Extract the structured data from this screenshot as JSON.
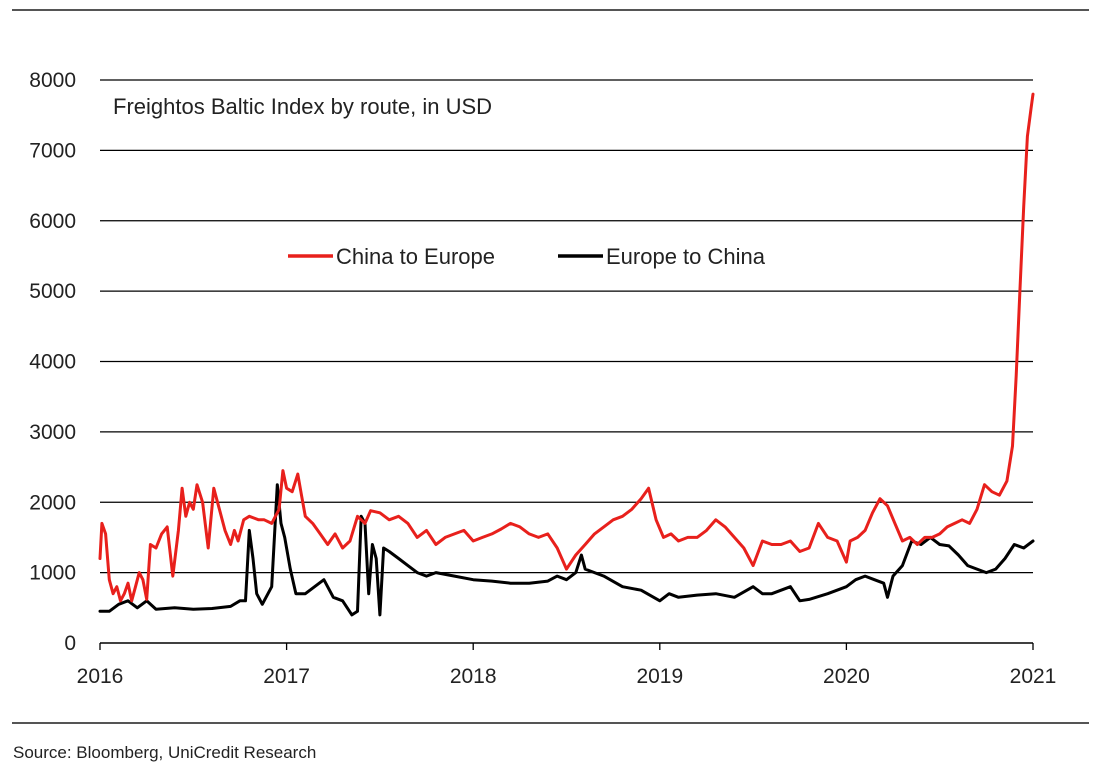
{
  "source_note": "Source: Bloomberg, UniCredit Research",
  "chart_data": {
    "type": "line",
    "title": "Freightos Baltic Index by route, in USD",
    "xlabel": "",
    "ylabel": "",
    "xlim": [
      2016.0,
      2021.0
    ],
    "ylim": [
      0,
      8000
    ],
    "y_ticks": [
      0,
      1000,
      2000,
      3000,
      4000,
      5000,
      6000,
      7000,
      8000
    ],
    "x_ticks": [
      2016,
      2017,
      2018,
      2019,
      2020,
      2021
    ],
    "grid": "horizontal",
    "legend": "center-top, inside plot",
    "colors": {
      "China to Europe": "#e8201c",
      "Europe to China": "#000000"
    },
    "series": [
      {
        "name": "China to Europe",
        "points": [
          [
            2016.0,
            1200
          ],
          [
            2016.01,
            1700
          ],
          [
            2016.03,
            1550
          ],
          [
            2016.05,
            900
          ],
          [
            2016.07,
            700
          ],
          [
            2016.09,
            800
          ],
          [
            2016.11,
            600
          ],
          [
            2016.13,
            700
          ],
          [
            2016.15,
            850
          ],
          [
            2016.17,
            600
          ],
          [
            2016.19,
            800
          ],
          [
            2016.21,
            1000
          ],
          [
            2016.23,
            900
          ],
          [
            2016.25,
            620
          ],
          [
            2016.27,
            1400
          ],
          [
            2016.3,
            1350
          ],
          [
            2016.33,
            1550
          ],
          [
            2016.36,
            1650
          ],
          [
            2016.39,
            950
          ],
          [
            2016.42,
            1600
          ],
          [
            2016.44,
            2200
          ],
          [
            2016.46,
            1800
          ],
          [
            2016.48,
            2000
          ],
          [
            2016.5,
            1900
          ],
          [
            2016.52,
            2250
          ],
          [
            2016.55,
            2000
          ],
          [
            2016.58,
            1350
          ],
          [
            2016.61,
            2200
          ],
          [
            2016.64,
            1900
          ],
          [
            2016.67,
            1600
          ],
          [
            2016.7,
            1400
          ],
          [
            2016.72,
            1600
          ],
          [
            2016.74,
            1450
          ],
          [
            2016.77,
            1750
          ],
          [
            2016.8,
            1800
          ],
          [
            2016.85,
            1750
          ],
          [
            2016.88,
            1750
          ],
          [
            2016.92,
            1700
          ],
          [
            2016.96,
            1900
          ],
          [
            2016.98,
            2450
          ],
          [
            2017.0,
            2200
          ],
          [
            2017.03,
            2150
          ],
          [
            2017.06,
            2400
          ],
          [
            2017.08,
            2100
          ],
          [
            2017.1,
            1800
          ],
          [
            2017.14,
            1700
          ],
          [
            2017.18,
            1550
          ],
          [
            2017.22,
            1400
          ],
          [
            2017.26,
            1550
          ],
          [
            2017.3,
            1350
          ],
          [
            2017.34,
            1450
          ],
          [
            2017.38,
            1800
          ],
          [
            2017.42,
            1700
          ],
          [
            2017.45,
            1880
          ],
          [
            2017.5,
            1850
          ],
          [
            2017.55,
            1750
          ],
          [
            2017.6,
            1800
          ],
          [
            2017.65,
            1700
          ],
          [
            2017.7,
            1500
          ],
          [
            2017.75,
            1600
          ],
          [
            2017.8,
            1400
          ],
          [
            2017.85,
            1500
          ],
          [
            2017.9,
            1550
          ],
          [
            2017.95,
            1600
          ],
          [
            2018.0,
            1450
          ],
          [
            2018.05,
            1500
          ],
          [
            2018.1,
            1550
          ],
          [
            2018.15,
            1620
          ],
          [
            2018.2,
            1700
          ],
          [
            2018.25,
            1650
          ],
          [
            2018.3,
            1550
          ],
          [
            2018.35,
            1500
          ],
          [
            2018.4,
            1550
          ],
          [
            2018.45,
            1350
          ],
          [
            2018.5,
            1050
          ],
          [
            2018.55,
            1250
          ],
          [
            2018.6,
            1400
          ],
          [
            2018.65,
            1550
          ],
          [
            2018.7,
            1650
          ],
          [
            2018.75,
            1750
          ],
          [
            2018.8,
            1800
          ],
          [
            2018.85,
            1900
          ],
          [
            2018.9,
            2050
          ],
          [
            2018.94,
            2200
          ],
          [
            2018.98,
            1750
          ],
          [
            2019.02,
            1500
          ],
          [
            2019.06,
            1550
          ],
          [
            2019.1,
            1450
          ],
          [
            2019.15,
            1500
          ],
          [
            2019.2,
            1500
          ],
          [
            2019.25,
            1600
          ],
          [
            2019.3,
            1750
          ],
          [
            2019.35,
            1650
          ],
          [
            2019.4,
            1500
          ],
          [
            2019.45,
            1350
          ],
          [
            2019.5,
            1100
          ],
          [
            2019.55,
            1450
          ],
          [
            2019.6,
            1400
          ],
          [
            2019.65,
            1400
          ],
          [
            2019.7,
            1450
          ],
          [
            2019.75,
            1300
          ],
          [
            2019.8,
            1350
          ],
          [
            2019.85,
            1700
          ],
          [
            2019.9,
            1500
          ],
          [
            2019.95,
            1450
          ],
          [
            2020.0,
            1150
          ],
          [
            2020.02,
            1450
          ],
          [
            2020.06,
            1500
          ],
          [
            2020.1,
            1600
          ],
          [
            2020.14,
            1850
          ],
          [
            2020.18,
            2050
          ],
          [
            2020.22,
            1950
          ],
          [
            2020.26,
            1700
          ],
          [
            2020.3,
            1450
          ],
          [
            2020.34,
            1500
          ],
          [
            2020.38,
            1400
          ],
          [
            2020.42,
            1500
          ],
          [
            2020.46,
            1500
          ],
          [
            2020.5,
            1550
          ],
          [
            2020.54,
            1650
          ],
          [
            2020.58,
            1700
          ],
          [
            2020.62,
            1750
          ],
          [
            2020.66,
            1700
          ],
          [
            2020.7,
            1900
          ],
          [
            2020.74,
            2250
          ],
          [
            2020.78,
            2150
          ],
          [
            2020.82,
            2100
          ],
          [
            2020.86,
            2300
          ],
          [
            2020.89,
            2800
          ],
          [
            2020.91,
            3800
          ],
          [
            2020.93,
            5000
          ],
          [
            2020.95,
            6200
          ],
          [
            2020.97,
            7200
          ],
          [
            2020.99,
            7600
          ],
          [
            2021.0,
            7800
          ]
        ]
      },
      {
        "name": "Europe to China",
        "points": [
          [
            2016.0,
            450
          ],
          [
            2016.05,
            450
          ],
          [
            2016.1,
            550
          ],
          [
            2016.15,
            600
          ],
          [
            2016.2,
            500
          ],
          [
            2016.25,
            600
          ],
          [
            2016.3,
            480
          ],
          [
            2016.4,
            500
          ],
          [
            2016.5,
            480
          ],
          [
            2016.6,
            490
          ],
          [
            2016.7,
            520
          ],
          [
            2016.75,
            600
          ],
          [
            2016.78,
            600
          ],
          [
            2016.8,
            1600
          ],
          [
            2016.82,
            1200
          ],
          [
            2016.84,
            700
          ],
          [
            2016.87,
            550
          ],
          [
            2016.92,
            800
          ],
          [
            2016.95,
            2250
          ],
          [
            2016.97,
            1700
          ],
          [
            2016.99,
            1500
          ],
          [
            2017.02,
            1050
          ],
          [
            2017.05,
            700
          ],
          [
            2017.1,
            700
          ],
          [
            2017.15,
            800
          ],
          [
            2017.2,
            900
          ],
          [
            2017.25,
            650
          ],
          [
            2017.3,
            600
          ],
          [
            2017.35,
            400
          ],
          [
            2017.38,
            450
          ],
          [
            2017.4,
            1800
          ],
          [
            2017.42,
            1700
          ],
          [
            2017.44,
            700
          ],
          [
            2017.46,
            1400
          ],
          [
            2017.48,
            1200
          ],
          [
            2017.5,
            400
          ],
          [
            2017.52,
            1350
          ],
          [
            2017.55,
            1300
          ],
          [
            2017.6,
            1200
          ],
          [
            2017.65,
            1100
          ],
          [
            2017.7,
            1000
          ],
          [
            2017.75,
            950
          ],
          [
            2017.8,
            1000
          ],
          [
            2017.9,
            950
          ],
          [
            2018.0,
            900
          ],
          [
            2018.1,
            880
          ],
          [
            2018.2,
            850
          ],
          [
            2018.3,
            850
          ],
          [
            2018.4,
            880
          ],
          [
            2018.45,
            950
          ],
          [
            2018.5,
            900
          ],
          [
            2018.55,
            1000
          ],
          [
            2018.58,
            1250
          ],
          [
            2018.6,
            1050
          ],
          [
            2018.7,
            950
          ],
          [
            2018.8,
            800
          ],
          [
            2018.9,
            750
          ],
          [
            2019.0,
            600
          ],
          [
            2019.05,
            700
          ],
          [
            2019.1,
            650
          ],
          [
            2019.2,
            680
          ],
          [
            2019.3,
            700
          ],
          [
            2019.4,
            650
          ],
          [
            2019.5,
            800
          ],
          [
            2019.55,
            700
          ],
          [
            2019.6,
            700
          ],
          [
            2019.7,
            800
          ],
          [
            2019.75,
            600
          ],
          [
            2019.8,
            620
          ],
          [
            2019.9,
            700
          ],
          [
            2020.0,
            800
          ],
          [
            2020.05,
            900
          ],
          [
            2020.1,
            950
          ],
          [
            2020.15,
            900
          ],
          [
            2020.2,
            850
          ],
          [
            2020.22,
            650
          ],
          [
            2020.25,
            950
          ],
          [
            2020.3,
            1100
          ],
          [
            2020.35,
            1450
          ],
          [
            2020.4,
            1400
          ],
          [
            2020.45,
            1500
          ],
          [
            2020.5,
            1400
          ],
          [
            2020.55,
            1380
          ],
          [
            2020.6,
            1250
          ],
          [
            2020.65,
            1100
          ],
          [
            2020.7,
            1050
          ],
          [
            2020.75,
            1000
          ],
          [
            2020.8,
            1050
          ],
          [
            2020.85,
            1200
          ],
          [
            2020.9,
            1400
          ],
          [
            2020.95,
            1350
          ],
          [
            2021.0,
            1450
          ]
        ]
      }
    ]
  }
}
